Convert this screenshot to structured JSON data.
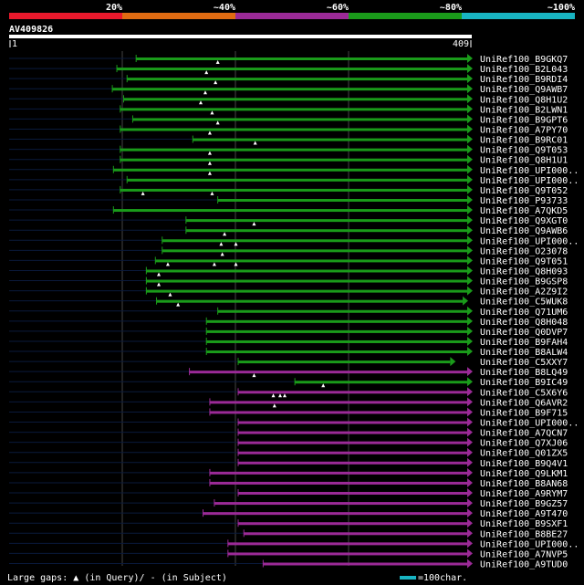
{
  "chart_data": {
    "type": "alignment",
    "query_id": "AV409826",
    "query_range": [
      1,
      409
    ],
    "legend_colors": {
      "c20": "#e8192c",
      "c40": "#e06b12",
      "c60": "#9b2a97",
      "c80": "#1a9b1a",
      "c100": "#18b4c2"
    },
    "identity_labels": [
      "20%",
      "~40%",
      "~60%",
      "~80%",
      "~100%"
    ],
    "footer": {
      "gaps_prefix": "Large gaps: ",
      "gaps_mid": "(in Query)/",
      "gaps_dash": "-",
      "gaps_suffix": " (in Subject)",
      "scale_label": "=100char."
    },
    "hits": [
      {
        "name": "UniRef100_B9GKQ7",
        "class": "c80",
        "start": 113,
        "end": 409,
        "gaps": [
          185
        ]
      },
      {
        "name": "UniRef100_B2L043",
        "class": "c80",
        "start": 96,
        "end": 409,
        "gaps": [
          175
        ]
      },
      {
        "name": "UniRef100_B9RDI4",
        "class": "c80",
        "start": 105,
        "end": 409,
        "gaps": [
          183
        ]
      },
      {
        "name": "UniRef100_Q9AWB7",
        "class": "c80",
        "start": 92,
        "end": 409,
        "gaps": [
          174
        ]
      },
      {
        "name": "UniRef100_Q8H1U2",
        "class": "c80",
        "start": 102,
        "end": 409,
        "gaps": [
          170
        ]
      },
      {
        "name": "UniRef100_B2LWN1",
        "class": "c80",
        "start": 99,
        "end": 409,
        "gaps": [
          180
        ]
      },
      {
        "name": "UniRef100_B9GPT6",
        "class": "c80",
        "start": 110,
        "end": 409,
        "gaps": [
          185
        ]
      },
      {
        "name": "UniRef100_A7PY70",
        "class": "c80",
        "start": 99,
        "end": 409,
        "gaps": [
          178
        ]
      },
      {
        "name": "UniRef100_B9RC01",
        "class": "c80",
        "start": 163,
        "end": 409,
        "gaps": [
          218
        ]
      },
      {
        "name": "UniRef100_Q9T053",
        "class": "c80",
        "start": 99,
        "end": 409,
        "gaps": [
          178
        ]
      },
      {
        "name": "UniRef100_Q8H1U1",
        "class": "c80",
        "start": 99,
        "end": 409,
        "gaps": [
          178
        ]
      },
      {
        "name": "UniRef100_UPI000..",
        "class": "c80",
        "start": 93,
        "end": 409,
        "gaps": [
          178
        ]
      },
      {
        "name": "UniRef100_UPI000..",
        "class": "c80",
        "start": 105,
        "end": 409,
        "gaps": []
      },
      {
        "name": "UniRef100_Q9T052",
        "class": "c80",
        "start": 99,
        "end": 409,
        "gaps": [
          119,
          180
        ]
      },
      {
        "name": "UniRef100_P93733",
        "class": "c80",
        "start": 185,
        "end": 409,
        "gaps": []
      },
      {
        "name": "UniRef100_A7QKD5",
        "class": "c80",
        "start": 93,
        "end": 409,
        "gaps": []
      },
      {
        "name": "UniRef100_Q9XGT0",
        "class": "c80",
        "start": 157,
        "end": 409,
        "gaps": [
          217
        ]
      },
      {
        "name": "UniRef100_Q9AWB6",
        "class": "c80",
        "start": 157,
        "end": 409,
        "gaps": [
          191
        ]
      },
      {
        "name": "UniRef100_UPI000..",
        "class": "c80",
        "start": 136,
        "end": 409,
        "gaps": [
          188,
          201
        ]
      },
      {
        "name": "UniRef100_O23078",
        "class": "c80",
        "start": 136,
        "end": 409,
        "gaps": [
          189
        ]
      },
      {
        "name": "UniRef100_Q9T051",
        "class": "c80",
        "start": 130,
        "end": 409,
        "gaps": [
          141,
          182,
          201
        ]
      },
      {
        "name": "UniRef100_Q8H093",
        "class": "c80",
        "start": 122,
        "end": 409,
        "gaps": [
          133
        ]
      },
      {
        "name": "UniRef100_B9GSP8",
        "class": "c80",
        "start": 122,
        "end": 409,
        "gaps": [
          133
        ]
      },
      {
        "name": "UniRef100_A2Z9I2",
        "class": "c80",
        "start": 122,
        "end": 409,
        "gaps": [
          143
        ]
      },
      {
        "name": "UniRef100_C5WUK8",
        "class": "c80",
        "start": 131,
        "end": 405,
        "gaps": [
          150
        ]
      },
      {
        "name": "UniRef100_Q71UM6",
        "class": "c80",
        "start": 185,
        "end": 409,
        "gaps": []
      },
      {
        "name": "UniRef100_Q8H048",
        "class": "c80",
        "start": 175,
        "end": 409,
        "gaps": []
      },
      {
        "name": "UniRef100_Q0DVP7",
        "class": "c80",
        "start": 175,
        "end": 409,
        "gaps": []
      },
      {
        "name": "UniRef100_B9FAH4",
        "class": "c80",
        "start": 175,
        "end": 409,
        "gaps": []
      },
      {
        "name": "UniRef100_B8ALW4",
        "class": "c80",
        "start": 175,
        "end": 409,
        "gaps": []
      },
      {
        "name": "UniRef100_C5XXY7",
        "class": "c80",
        "start": 203,
        "end": 394,
        "gaps": []
      },
      {
        "name": "UniRef100_B8LQ49",
        "class": "c60",
        "start": 160,
        "end": 409,
        "gaps": [
          217
        ]
      },
      {
        "name": "UniRef100_B9IC49",
        "class": "c80",
        "start": 253,
        "end": 409,
        "gaps": [
          278
        ]
      },
      {
        "name": "UniRef100_C5X6Y6",
        "class": "c60",
        "start": 203,
        "end": 409,
        "gaps": [
          234,
          240,
          244
        ]
      },
      {
        "name": "UniRef100_Q6AVR2",
        "class": "c60",
        "start": 178,
        "end": 409,
        "gaps": [
          235
        ]
      },
      {
        "name": "UniRef100_B9F715",
        "class": "c60",
        "start": 178,
        "end": 409,
        "gaps": []
      },
      {
        "name": "UniRef100_UPI000..",
        "class": "c60",
        "start": 203,
        "end": 409,
        "gaps": []
      },
      {
        "name": "UniRef100_A7QCN7",
        "class": "c60",
        "start": 203,
        "end": 409,
        "gaps": []
      },
      {
        "name": "UniRef100_Q7XJ06",
        "class": "c60",
        "start": 203,
        "end": 409,
        "gaps": []
      },
      {
        "name": "UniRef100_Q01ZX5",
        "class": "c60",
        "start": 203,
        "end": 409,
        "gaps": []
      },
      {
        "name": "UniRef100_B9Q4V1",
        "class": "c60",
        "start": 203,
        "end": 409,
        "gaps": []
      },
      {
        "name": "UniRef100_Q9LKM1",
        "class": "c60",
        "start": 178,
        "end": 409,
        "gaps": []
      },
      {
        "name": "UniRef100_B8AN68",
        "class": "c60",
        "start": 178,
        "end": 409,
        "gaps": []
      },
      {
        "name": "UniRef100_A9RYM7",
        "class": "c60",
        "start": 203,
        "end": 409,
        "gaps": []
      },
      {
        "name": "UniRef100_B9GZ57",
        "class": "c60",
        "start": 182,
        "end": 409,
        "gaps": []
      },
      {
        "name": "UniRef100_A9T470",
        "class": "c60",
        "start": 172,
        "end": 409,
        "gaps": []
      },
      {
        "name": "UniRef100_B9SXF1",
        "class": "c60",
        "start": 203,
        "end": 409,
        "gaps": []
      },
      {
        "name": "UniRef100_B8BE27",
        "class": "c60",
        "start": 208,
        "end": 409,
        "gaps": []
      },
      {
        "name": "UniRef100_UPI000..",
        "class": "c60",
        "start": 194,
        "end": 409,
        "gaps": []
      },
      {
        "name": "UniRef100_A7NVP5",
        "class": "c60",
        "start": 194,
        "end": 409,
        "gaps": []
      },
      {
        "name": "UniRef100_A9TUD0",
        "class": "c60",
        "start": 225,
        "end": 409,
        "gaps": []
      }
    ]
  }
}
